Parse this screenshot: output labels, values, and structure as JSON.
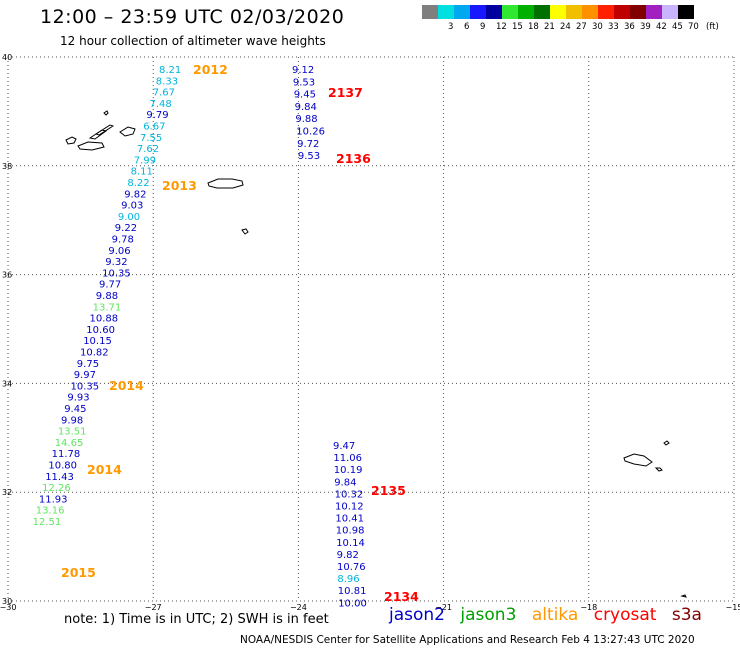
{
  "header": {
    "title": "12:00 – 23:59 UTC 02/03/2020",
    "subtitle": "12 hour collection of altimeter wave heights"
  },
  "colorbar": {
    "unit": "(ft)",
    "steps": [
      {
        "label": "",
        "color": "#7f7f7f"
      },
      {
        "label": "3",
        "color": "#00e0e0"
      },
      {
        "label": "6",
        "color": "#00a8f0"
      },
      {
        "label": "9",
        "color": "#1818ff"
      },
      {
        "label": "12",
        "color": "#0000a0"
      },
      {
        "label": "15",
        "color": "#30e830"
      },
      {
        "label": "18",
        "color": "#00b000"
      },
      {
        "label": "21",
        "color": "#007000"
      },
      {
        "label": "24",
        "color": "#ffff00"
      },
      {
        "label": "27",
        "color": "#f0c000"
      },
      {
        "label": "30",
        "color": "#ff9000"
      },
      {
        "label": "33",
        "color": "#ff2000"
      },
      {
        "label": "36",
        "color": "#c00000"
      },
      {
        "label": "39",
        "color": "#800000"
      },
      {
        "label": "42",
        "color": "#a020c0"
      },
      {
        "label": "45",
        "color": "#c8b4ff"
      },
      {
        "label": "70",
        "color": "#000000"
      }
    ]
  },
  "map": {
    "lon_ticks": [
      "−30",
      "−27",
      "−24",
      "−21",
      "−18",
      "−15"
    ],
    "lat_ticks": [
      "40",
      "38",
      "36",
      "34",
      "32",
      "30"
    ],
    "lon_range": [
      -30,
      -15
    ],
    "lat_range": [
      30,
      40
    ]
  },
  "colors": {
    "jason2": "#0000c8",
    "jason3": "#00a000",
    "altika": "#ff9900",
    "cryosat": "#ff0000",
    "s3a": "#800000",
    "cyan_value": "#00b4dc",
    "lightgreen_value": "#5ee65e"
  },
  "tracks": [
    {
      "items": [
        {
          "t": "8.21",
          "c": "cyan_value"
        },
        {
          "t": "8.33",
          "c": "cyan_value"
        },
        {
          "t": "7.67",
          "c": "cyan_value"
        },
        {
          "t": "7.48",
          "c": "cyan_value"
        },
        {
          "t": "9.79",
          "c": "jason2"
        },
        {
          "t": "6.67",
          "c": "cyan_value"
        },
        {
          "t": "7.55",
          "c": "cyan_value"
        },
        {
          "t": "7.62",
          "c": "cyan_value"
        },
        {
          "t": "7.99",
          "c": "cyan_value"
        },
        {
          "t": "8.11",
          "c": "cyan_value"
        },
        {
          "t": "8.22",
          "c": "cyan_value"
        },
        {
          "t": "9.82",
          "c": "jason2"
        },
        {
          "t": "9.03",
          "c": "jason2"
        },
        {
          "t": "9.00",
          "c": "cyan_value"
        },
        {
          "t": "9.22",
          "c": "jason2"
        },
        {
          "t": "9.78",
          "c": "jason2"
        },
        {
          "t": "9.06",
          "c": "jason2"
        },
        {
          "t": "9.32",
          "c": "jason2"
        },
        {
          "t": "10.35",
          "c": "jason2"
        },
        {
          "t": "9.77",
          "c": "jason2"
        },
        {
          "t": "9.88",
          "c": "jason2"
        },
        {
          "t": "13.71",
          "c": "lightgreen_value"
        },
        {
          "t": "10.88",
          "c": "jason2"
        },
        {
          "t": "10.60",
          "c": "jason2"
        },
        {
          "t": "10.15",
          "c": "jason2"
        },
        {
          "t": "10.82",
          "c": "jason2"
        },
        {
          "t": "9.75",
          "c": "jason2"
        },
        {
          "t": "9.97",
          "c": "jason2"
        },
        {
          "t": "10.35",
          "c": "jason2"
        },
        {
          "t": "9.93",
          "c": "jason2"
        },
        {
          "t": "9.45",
          "c": "jason2"
        },
        {
          "t": "9.98",
          "c": "jason2"
        },
        {
          "t": "13.51",
          "c": "lightgreen_value"
        },
        {
          "t": "14.65",
          "c": "lightgreen_value"
        },
        {
          "t": "11.78",
          "c": "jason2"
        },
        {
          "t": "10.80",
          "c": "jason2"
        },
        {
          "t": "11.43",
          "c": "jason2"
        },
        {
          "t": "12.26",
          "c": "lightgreen_value"
        },
        {
          "t": "11.93",
          "c": "jason2"
        },
        {
          "t": "13.16",
          "c": "lightgreen_value"
        },
        {
          "t": "12.51",
          "c": "lightgreen_value"
        }
      ]
    },
    {
      "items": [
        {
          "t": "9.12",
          "c": "jason2"
        },
        {
          "t": "9.53",
          "c": "jason2"
        },
        {
          "t": "9.45",
          "c": "jason2"
        },
        {
          "t": "9.84",
          "c": "jason2"
        },
        {
          "t": "9.88",
          "c": "jason2"
        },
        {
          "t": "10.26",
          "c": "jason2"
        },
        {
          "t": "9.72",
          "c": "jason2"
        },
        {
          "t": "9.53",
          "c": "jason2"
        }
      ]
    },
    {
      "items": [
        {
          "t": "9.47",
          "c": "jason2"
        },
        {
          "t": "11.06",
          "c": "jason2"
        },
        {
          "t": "10.19",
          "c": "jason2"
        },
        {
          "t": "9.84",
          "c": "jason2"
        },
        {
          "t": "10.32",
          "c": "jason2"
        },
        {
          "t": "10.12",
          "c": "jason2"
        },
        {
          "t": "10.41",
          "c": "jason2"
        },
        {
          "t": "10.98",
          "c": "jason2"
        },
        {
          "t": "10.14",
          "c": "jason2"
        },
        {
          "t": "9.82",
          "c": "jason2"
        },
        {
          "t": "10.76",
          "c": "jason2"
        },
        {
          "t": "8.96",
          "c": "cyan_value"
        },
        {
          "t": "10.81",
          "c": "jason2"
        },
        {
          "t": "10.00",
          "c": "jason2"
        }
      ]
    }
  ],
  "pass_times": [
    {
      "t": "2012",
      "c": "altika"
    },
    {
      "t": "2137",
      "c": "cryosat"
    },
    {
      "t": "2136",
      "c": "cryosat"
    },
    {
      "t": "2013",
      "c": "altika"
    },
    {
      "t": "2014",
      "c": "altika"
    },
    {
      "t": "2014",
      "c": "altika"
    },
    {
      "t": "2015",
      "c": "altika"
    },
    {
      "t": "2135",
      "c": "cryosat"
    },
    {
      "t": "2134",
      "c": "cryosat"
    }
  ],
  "footer": {
    "note": "note:  1) Time is in UTC;  2) SWH is in feet",
    "legend": {
      "jason2": "jason2",
      "jason3": "jason3",
      "altika": "altika",
      "cryosat": "cryosat",
      "s3a": "s3a"
    },
    "credit": "NOAA/NESDIS Center for Satellite Applications and Research    Feb  4 13:27:43 UTC 2020"
  }
}
